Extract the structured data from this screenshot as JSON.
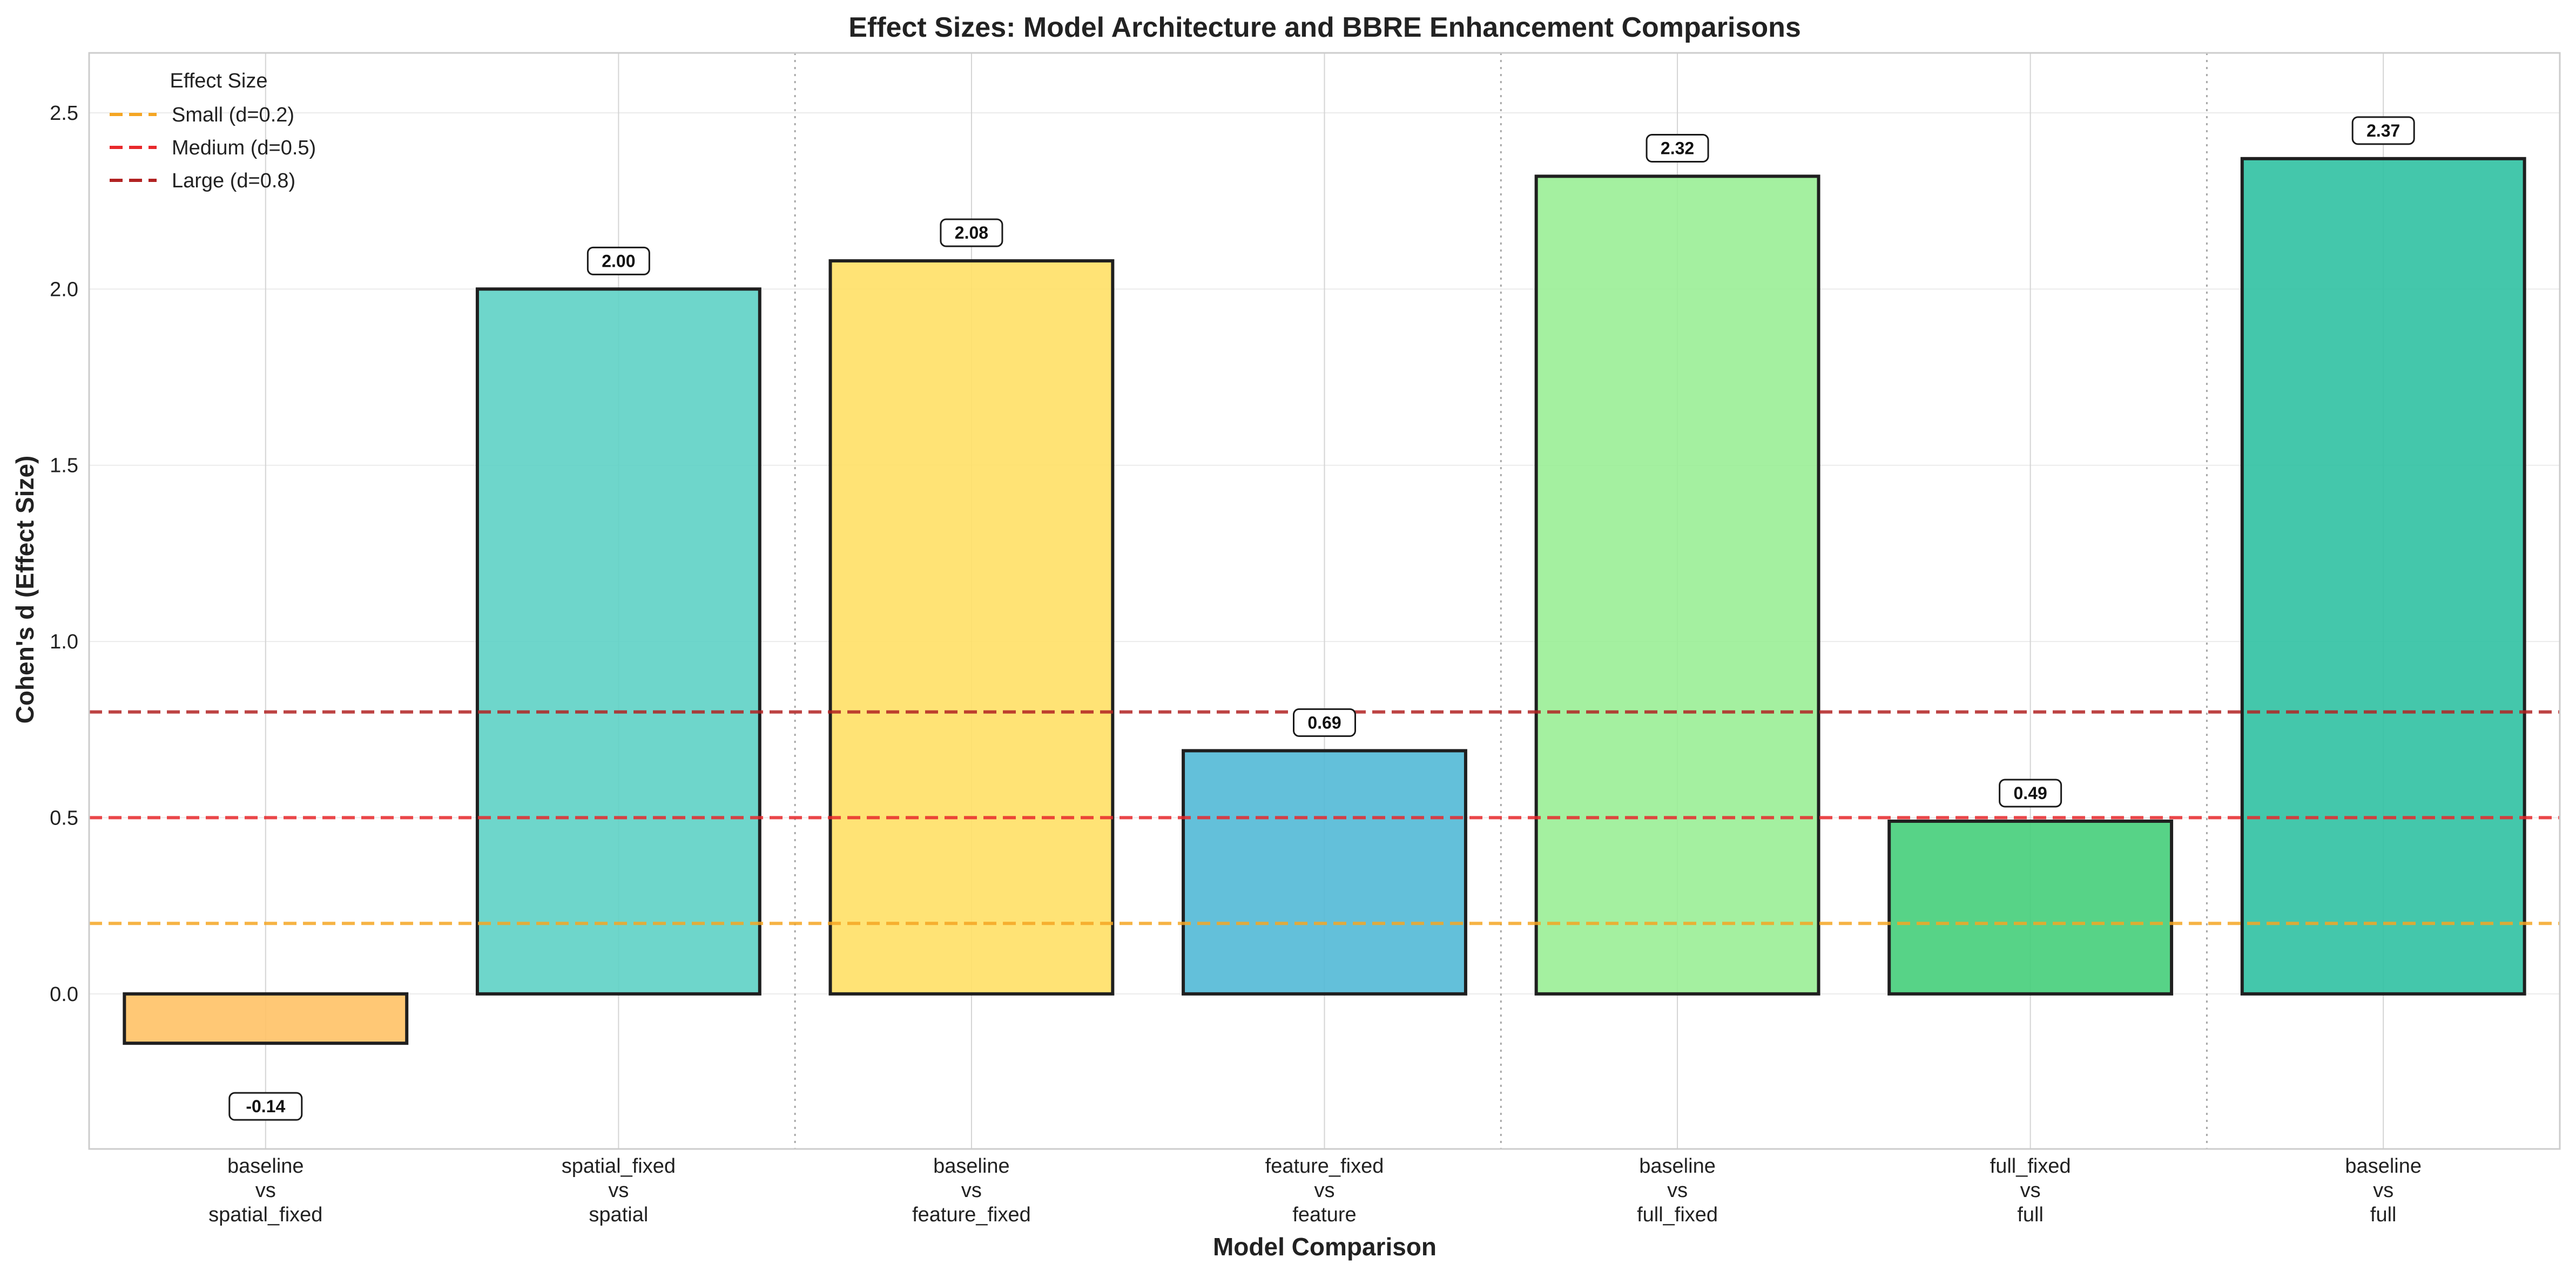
{
  "chart_data": {
    "type": "bar",
    "title": "Effect Sizes: Model Architecture and BBRE Enhancement Comparisons",
    "xlabel": "Model Comparison",
    "ylabel": "Cohen's d (Effect Size)",
    "ylim": [
      -0.44,
      2.67
    ],
    "yticks": [
      "0.0",
      "0.5",
      "1.0",
      "1.5",
      "2.0",
      "2.5"
    ],
    "ytick_values": [
      0.0,
      0.5,
      1.0,
      1.5,
      2.0,
      2.5
    ],
    "categories": [
      [
        "baseline",
        "vs",
        "spatial_fixed"
      ],
      [
        "spatial_fixed",
        "vs",
        "spatial"
      ],
      [
        "baseline",
        "vs",
        "feature_fixed"
      ],
      [
        "feature_fixed",
        "vs",
        "feature"
      ],
      [
        "baseline",
        "vs",
        "full_fixed"
      ],
      [
        "full_fixed",
        "vs",
        "full"
      ],
      [
        "baseline",
        "vs",
        "full"
      ]
    ],
    "values": [
      -0.14,
      2.0,
      2.08,
      0.69,
      2.32,
      0.49,
      2.37
    ],
    "value_labels": [
      "-0.14",
      "2.00",
      "2.08",
      "0.69",
      "2.32",
      "0.49",
      "2.37"
    ],
    "bar_colors": [
      "#FFC266",
      "#5ED1C5",
      "#FFE066",
      "#52B9D6",
      "#9AEE96",
      "#45CE7A",
      "#30C1A2"
    ],
    "group_separators_after": [
      1,
      3,
      5
    ],
    "reference_lines": [
      {
        "label": "Small (d=0.2)",
        "value": 0.2,
        "color": "#F5A623"
      },
      {
        "label": "Medium (d=0.5)",
        "value": 0.5,
        "color": "#E8282B"
      },
      {
        "label": "Large (d=0.8)",
        "value": 0.8,
        "color": "#B22222"
      }
    ],
    "legend": {
      "title": "Effect Size",
      "position": "top-left"
    },
    "grid": true
  }
}
